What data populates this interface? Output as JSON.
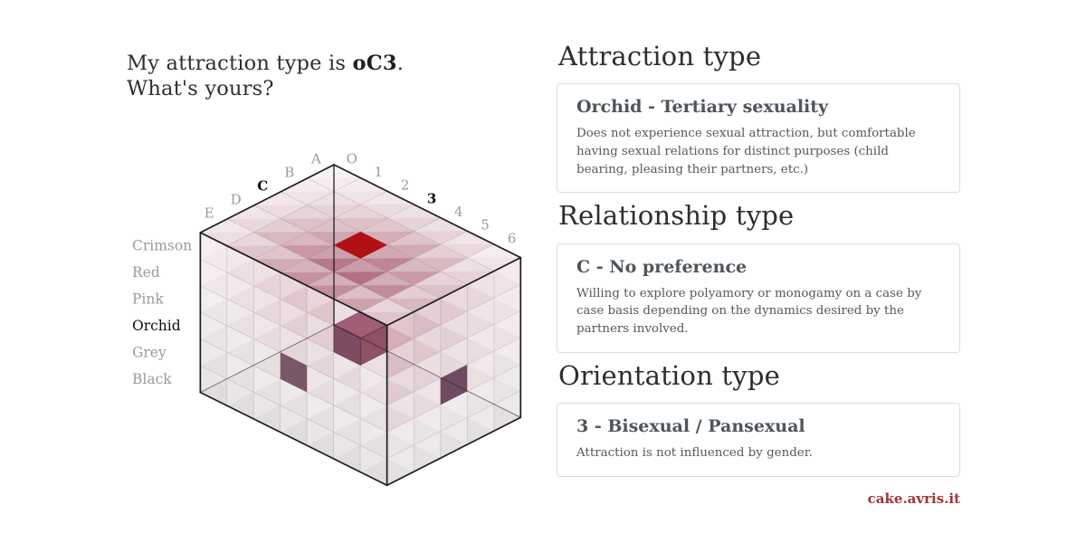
{
  "title": {
    "prefix": "My attraction type is ",
    "code": "oC3",
    "suffix": ".",
    "line2": "What's yours?"
  },
  "cube": {
    "letter_axis": {
      "labels": [
        "A",
        "B",
        "C",
        "D",
        "E"
      ],
      "selected": "C"
    },
    "number_axis": {
      "labels": [
        "O",
        "1",
        "2",
        "3",
        "4",
        "5",
        "6"
      ],
      "selected": "3"
    },
    "layer_axis": {
      "labels": [
        "Crimson",
        "Red",
        "Pink",
        "Orchid",
        "Grey",
        "Black"
      ],
      "selected": "Orchid"
    },
    "selected_cell": {
      "layer": "Orchid",
      "letter": "C",
      "number": "3",
      "code": "oC3"
    },
    "colors": {
      "highlight_top": "#b01113",
      "cube_top": "#a15e76",
      "cube_left": "#7d4b61",
      "cube_right": "#8f5166",
      "wall_left_shadow": "#7a5669",
      "wall_right_shadow": "#6e4b60",
      "edge": "#1c1c1c",
      "label_grey": "#9b9b9b",
      "label_active": "#0c0c0c",
      "rose": "#b47282"
    }
  },
  "sections": [
    {
      "heading": "Attraction type",
      "card_title": "Orchid - Tertiary sexuality",
      "card_body": "Does not experience sexual attraction, but comfortable having sexual relations for distinct purposes (child bearing, pleasing their partners, etc.)"
    },
    {
      "heading": "Relationship type",
      "card_title": "C - No preference",
      "card_body": "Willing to explore polyamory or monogamy on a case by case basis depending on the dynamics desired by the partners involved."
    },
    {
      "heading": "Orientation type",
      "card_title": "3 - Bisexual / Pansexual",
      "card_body": "Attraction is not influenced by gender."
    }
  ],
  "footer": {
    "link": "cake.avris.it",
    "link_color": "#a23535"
  }
}
